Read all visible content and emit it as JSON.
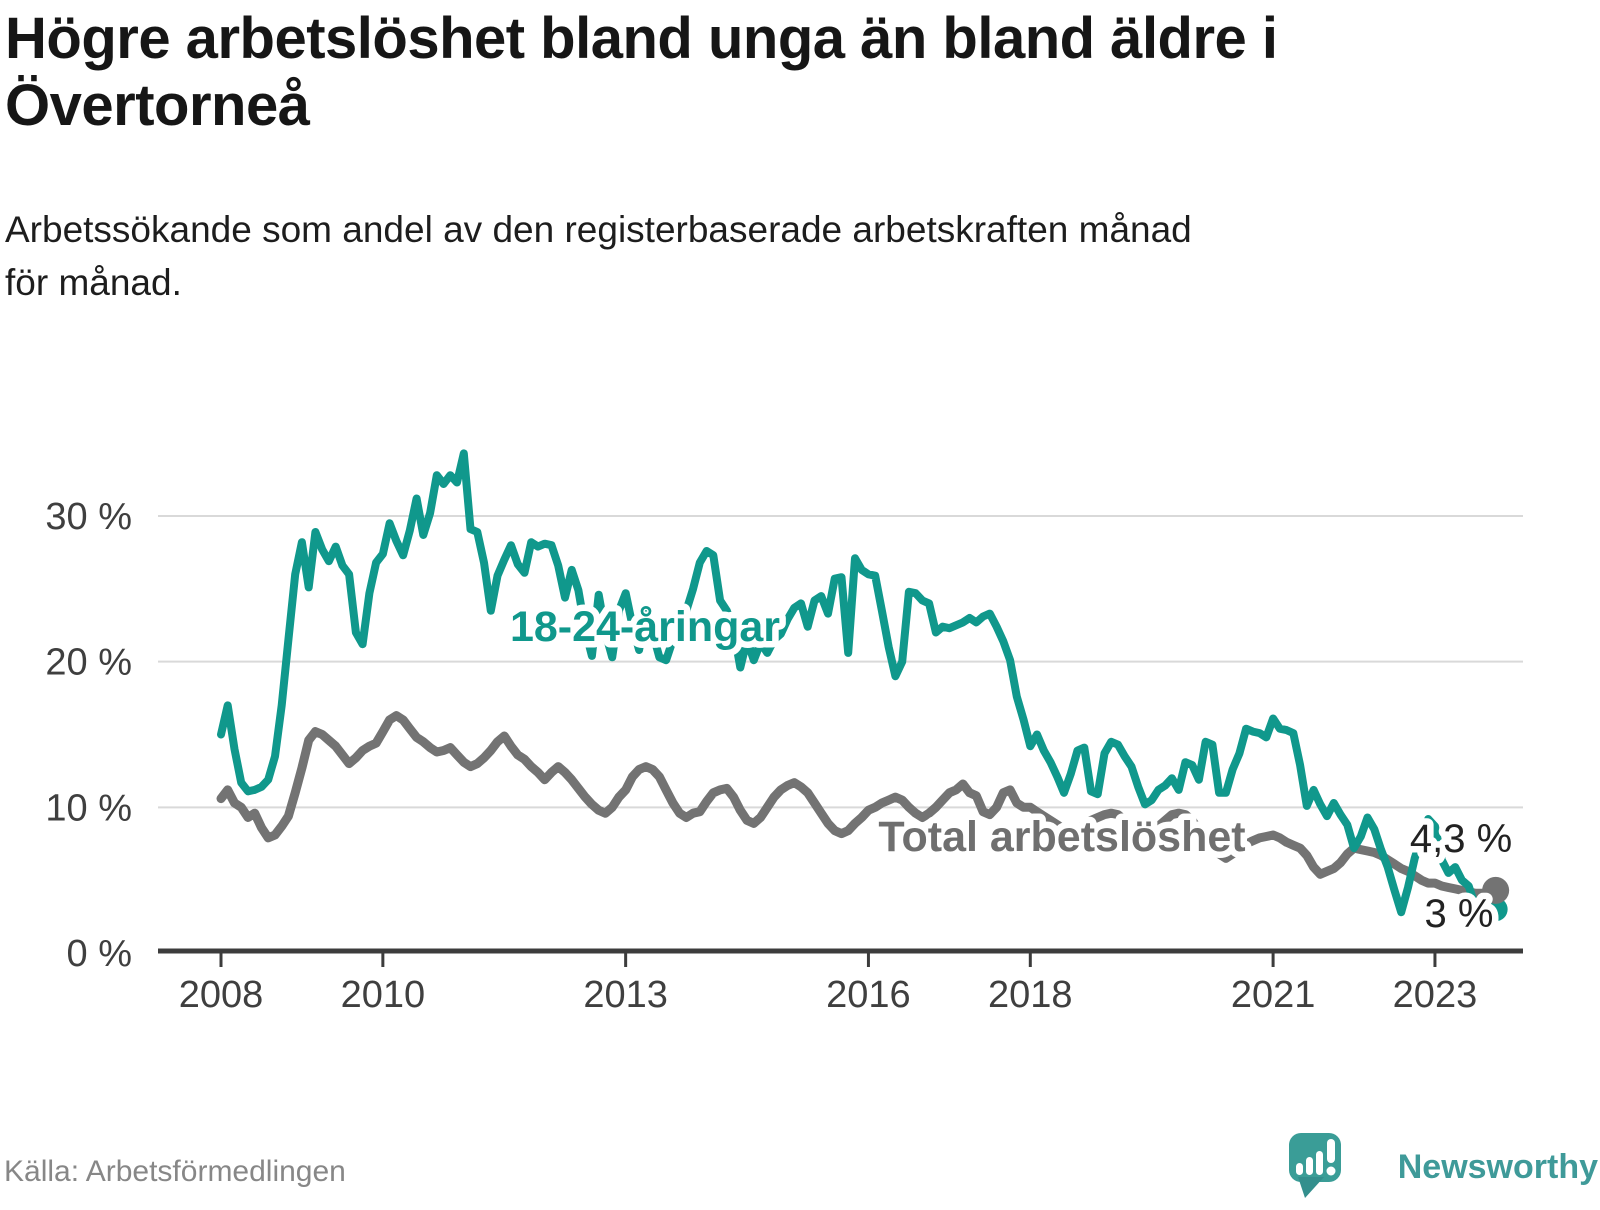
{
  "header": {
    "title_line1": "Högre arbetslöshet bland unga än bland äldre i",
    "title_line2": "Övertorneå",
    "subtitle_line1": "Arbetssökande som andel av den registerbaserade arbetskraften månad",
    "subtitle_line2": "för månad."
  },
  "footer": {
    "source": "Källa: Arbetsförmedlingen",
    "brand": "Newsworthy"
  },
  "colors": {
    "young": "#10988c",
    "total": "#737373",
    "grid": "#d9d9d9",
    "axis": "#3c3c3c",
    "axis_text": "#3f3f3f",
    "annotation": "#222222",
    "brand_teal": "#3f9a99"
  },
  "chart_data": {
    "type": "line",
    "title": "Högre arbetslöshet bland unga än bland äldre i Övertorneå",
    "subtitle": "Arbetssökande som andel av den registerbaserade arbetskraften månad för månad.",
    "x_unit": "month",
    "start": "2008-01",
    "end": "2023-10",
    "x_ticks": [
      2008,
      2010,
      2013,
      2016,
      2018,
      2021,
      2023
    ],
    "y_ticks": [
      {
        "value": 0,
        "label": "0 %"
      },
      {
        "value": 10,
        "label": "10 %"
      },
      {
        "value": 20,
        "label": "20 %"
      },
      {
        "value": 30,
        "label": "30 %"
      }
    ],
    "ylim": [
      0,
      36.5
    ],
    "grid": "horizontal",
    "legend": "inline-labels",
    "series": [
      {
        "id": "young",
        "label": "18-24-åringar",
        "color": "#10988c",
        "end_label": "3 %",
        "end_value": 3.0,
        "values": [
          15.0,
          17.0,
          14.0,
          11.7,
          11.1,
          11.2,
          11.4,
          11.9,
          13.5,
          17.0,
          21.5,
          26.0,
          28.2,
          25.1,
          28.9,
          27.7,
          26.9,
          27.9,
          26.6,
          26.0,
          22.0,
          21.2,
          24.7,
          26.8,
          27.4,
          29.5,
          28.3,
          27.3,
          29.0,
          31.2,
          28.7,
          30.2,
          32.8,
          32.2,
          32.8,
          32.3,
          34.3,
          29.1,
          28.9,
          26.8,
          23.5,
          25.9,
          27.0,
          28.0,
          26.7,
          26.1,
          28.2,
          27.9,
          28.1,
          28.0,
          26.6,
          24.4,
          26.3,
          24.9,
          22.2,
          20.4,
          24.6,
          22.0,
          20.3,
          23.5,
          24.7,
          22.5,
          20.8,
          23.5,
          22.0,
          20.3,
          20.1,
          21.5,
          22.5,
          23.5,
          25.0,
          26.8,
          27.6,
          27.3,
          24.2,
          23.5,
          22.2,
          19.6,
          21.5,
          20.1,
          21.3,
          20.6,
          21.5,
          21.9,
          22.9,
          23.7,
          24.0,
          22.4,
          24.2,
          24.5,
          23.3,
          25.7,
          25.8,
          20.6,
          27.1,
          26.3,
          26.0,
          25.9,
          23.5,
          21.0,
          19.0,
          20.0,
          24.8,
          24.7,
          24.2,
          24.0,
          22.0,
          22.4,
          22.3,
          22.5,
          22.7,
          23.0,
          22.7,
          23.1,
          23.3,
          22.4,
          21.4,
          20.1,
          17.6,
          16.0,
          14.2,
          15.0,
          13.9,
          13.1,
          12.1,
          11.0,
          12.3,
          13.9,
          14.1,
          11.1,
          10.9,
          13.7,
          14.5,
          14.3,
          13.5,
          12.8,
          11.4,
          10.2,
          10.5,
          11.2,
          11.5,
          12.0,
          11.2,
          13.1,
          12.9,
          11.9,
          14.5,
          14.3,
          11.0,
          11.0,
          12.6,
          13.7,
          15.4,
          15.2,
          15.1,
          14.8,
          16.1,
          15.4,
          15.3,
          15.1,
          12.9,
          10.1,
          11.2,
          10.2,
          9.4,
          10.3,
          9.5,
          8.8,
          7.2,
          8.0,
          9.3,
          8.5,
          7.1,
          5.9,
          4.3,
          2.8,
          4.5,
          6.5,
          8.0,
          9.2,
          8.7,
          6.4,
          5.5,
          5.9,
          5.0,
          4.6,
          3.2,
          3.7,
          3.4,
          3.0
        ]
      },
      {
        "id": "total",
        "label": "Total arbetslöshet",
        "color": "#737373",
        "end_label": "4,3 %",
        "end_value": 4.3,
        "values": [
          10.6,
          11.2,
          10.3,
          10.0,
          9.3,
          9.6,
          8.6,
          7.9,
          8.1,
          8.7,
          9.4,
          11.0,
          12.7,
          14.6,
          15.2,
          15.0,
          14.6,
          14.2,
          13.6,
          13.0,
          13.4,
          13.9,
          14.2,
          14.4,
          15.2,
          16.0,
          16.3,
          16.0,
          15.4,
          14.8,
          14.5,
          14.1,
          13.8,
          13.9,
          14.1,
          13.6,
          13.1,
          12.8,
          13.0,
          13.4,
          13.9,
          14.5,
          14.9,
          14.2,
          13.6,
          13.3,
          12.8,
          12.4,
          11.9,
          12.4,
          12.8,
          12.4,
          11.9,
          11.3,
          10.7,
          10.2,
          9.8,
          9.6,
          10.0,
          10.7,
          11.2,
          12.1,
          12.6,
          12.8,
          12.6,
          12.1,
          11.2,
          10.3,
          9.6,
          9.3,
          9.6,
          9.7,
          10.4,
          11.0,
          11.2,
          11.3,
          10.7,
          9.8,
          9.1,
          8.9,
          9.3,
          10.0,
          10.7,
          11.2,
          11.5,
          11.7,
          11.4,
          11.0,
          10.3,
          9.6,
          8.9,
          8.4,
          8.2,
          8.4,
          8.9,
          9.3,
          9.8,
          10.0,
          10.3,
          10.5,
          10.7,
          10.5,
          10.0,
          9.6,
          9.3,
          9.6,
          10.0,
          10.5,
          11.0,
          11.2,
          11.6,
          11.0,
          10.8,
          9.7,
          9.5,
          10.0,
          11.0,
          11.2,
          10.3,
          10.0,
          10.0,
          9.7,
          9.4,
          9.1,
          8.8,
          8.5,
          8.3,
          8.5,
          8.8,
          9.1,
          9.3,
          9.5,
          9.6,
          9.5,
          9.1,
          8.9,
          8.4,
          8.6,
          8.9,
          8.7,
          9.1,
          9.5,
          9.6,
          9.5,
          9.1,
          8.4,
          8.2,
          7.6,
          6.8,
          6.5,
          6.8,
          7.2,
          7.5,
          7.7,
          7.9,
          8.0,
          8.1,
          7.9,
          7.6,
          7.4,
          7.2,
          6.7,
          5.9,
          5.4,
          5.6,
          5.8,
          6.2,
          6.8,
          7.2,
          7.1,
          7.0,
          6.9,
          6.7,
          6.4,
          6.1,
          5.8,
          5.6,
          5.3,
          5.0,
          4.8,
          4.8,
          4.6,
          4.5,
          4.4,
          4.3,
          4.2,
          4.1,
          4.1,
          4.2,
          4.3
        ]
      }
    ]
  }
}
